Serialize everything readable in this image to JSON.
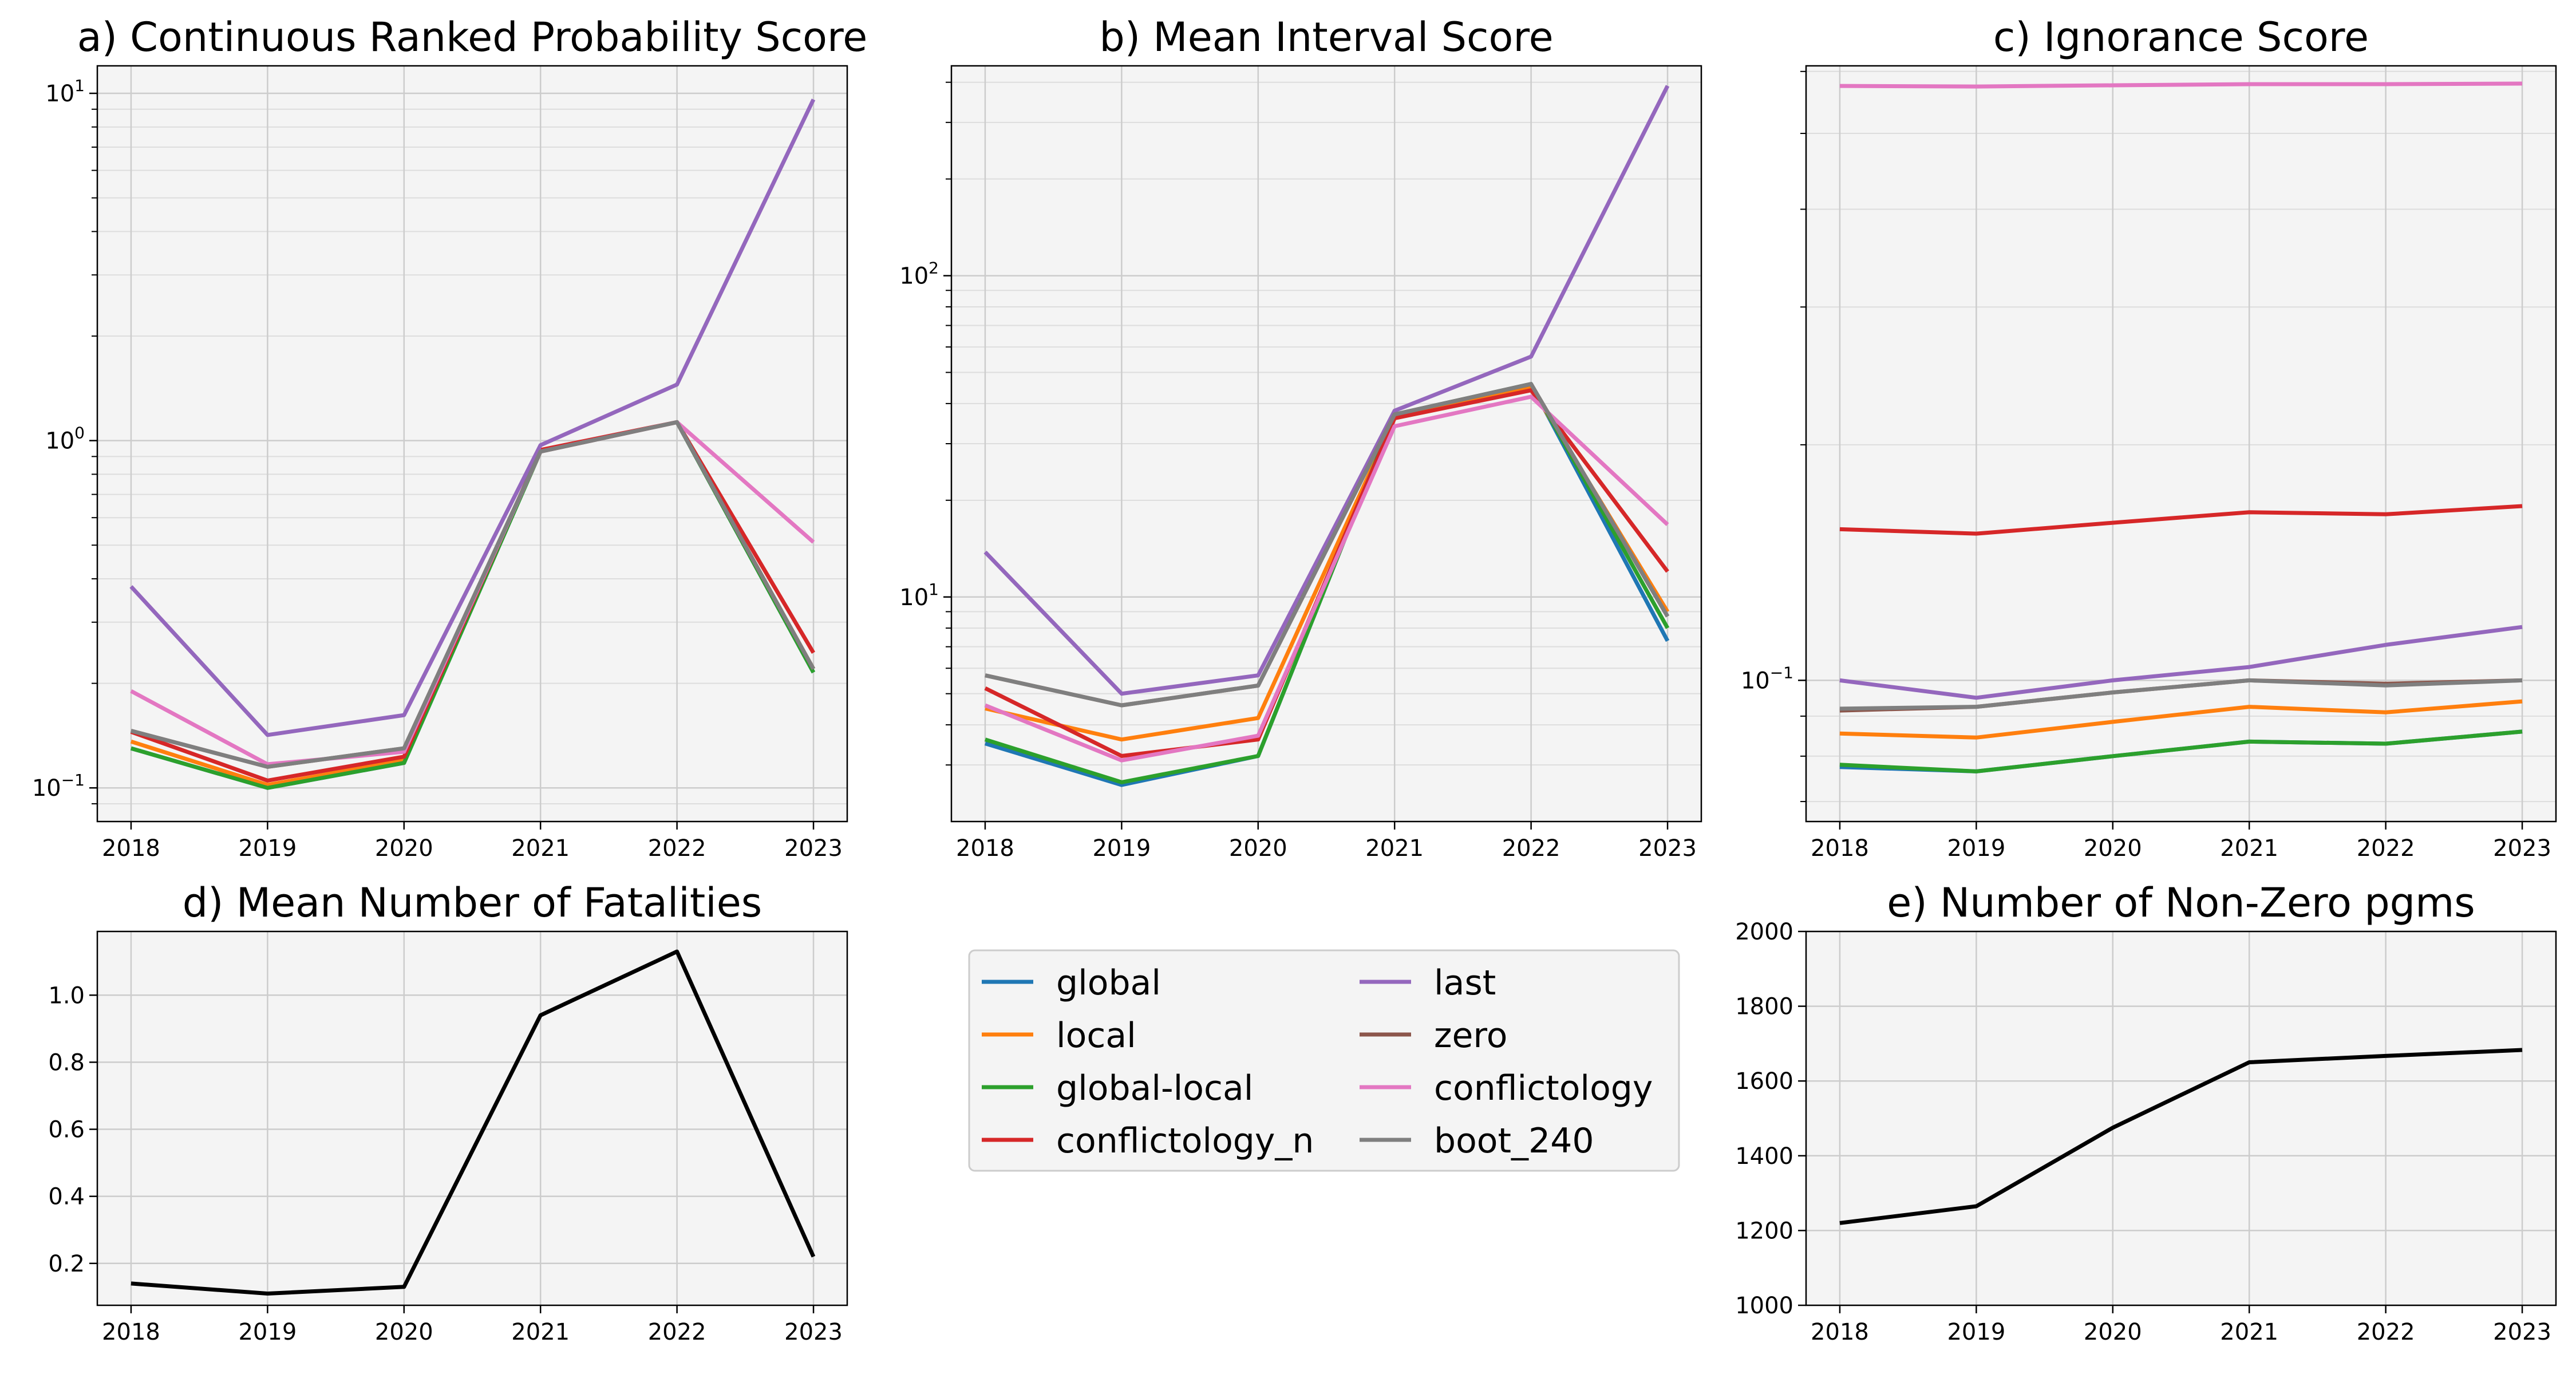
{
  "chart_data": [
    {
      "type": "line",
      "title": "a) Continuous Ranked Probability Score",
      "x": [
        "2018",
        "2019",
        "2020",
        "2021",
        "2022",
        "2023"
      ],
      "yscale": "log",
      "ylim": [
        0.08,
        12
      ],
      "yticks": [
        0.1,
        1,
        10
      ],
      "ytick_labels": [
        {
          "base": "10",
          "exp": "−1"
        },
        {
          "base": "10",
          "exp": "0"
        },
        {
          "base": "10",
          "exp": "1"
        }
      ],
      "grid": true,
      "series": [
        {
          "name": "global",
          "values": [
            0.13,
            0.1,
            0.118,
            0.93,
            1.13,
            0.215
          ]
        },
        {
          "name": "local",
          "values": [
            0.136,
            0.102,
            0.12,
            0.93,
            1.13,
            0.22
          ]
        },
        {
          "name": "global-local",
          "values": [
            0.13,
            0.1,
            0.118,
            0.93,
            1.13,
            0.215
          ]
        },
        {
          "name": "conflictology_n",
          "values": [
            0.145,
            0.105,
            0.123,
            0.94,
            1.13,
            0.245
          ]
        },
        {
          "name": "last",
          "values": [
            0.38,
            0.142,
            0.162,
            0.97,
            1.45,
            9.6
          ]
        },
        {
          "name": "zero",
          "values": [
            0.146,
            0.115,
            0.13,
            0.93,
            1.13,
            0.22
          ]
        },
        {
          "name": "conflictology",
          "values": [
            0.19,
            0.117,
            0.127,
            0.93,
            1.13,
            0.51
          ]
        },
        {
          "name": "boot_240",
          "values": [
            0.146,
            0.115,
            0.13,
            0.93,
            1.13,
            0.22
          ]
        }
      ]
    },
    {
      "type": "line",
      "title": "b) Mean Interval Score",
      "x": [
        "2018",
        "2019",
        "2020",
        "2021",
        "2022",
        "2023"
      ],
      "yscale": "log",
      "ylim": [
        2,
        450
      ],
      "yticks": [
        10,
        100
      ],
      "ytick_labels": [
        {
          "base": "10",
          "exp": "1"
        },
        {
          "base": "10",
          "exp": "2"
        }
      ],
      "grid": true,
      "series": [
        {
          "name": "global",
          "values": [
            3.5,
            2.6,
            3.2,
            37,
            46,
            7.3
          ]
        },
        {
          "name": "local",
          "values": [
            4.5,
            3.6,
            4.2,
            36,
            45,
            9
          ]
        },
        {
          "name": "global-local",
          "values": [
            3.6,
            2.65,
            3.2,
            37,
            46,
            8
          ]
        },
        {
          "name": "conflictology_n",
          "values": [
            5.2,
            3.2,
            3.6,
            36,
            44,
            12
          ]
        },
        {
          "name": "last",
          "values": [
            13.8,
            5,
            5.7,
            38,
            56,
            390
          ]
        },
        {
          "name": "zero",
          "values": [
            5.7,
            4.6,
            5.3,
            37,
            46,
            8.7
          ]
        },
        {
          "name": "conflictology",
          "values": [
            4.6,
            3.1,
            3.7,
            34,
            42,
            16.8
          ]
        },
        {
          "name": "boot_240",
          "values": [
            5.7,
            4.6,
            5.3,
            37,
            46,
            8.7
          ]
        }
      ]
    },
    {
      "type": "line",
      "title": "c) Ignorance Score",
      "x": [
        "2018",
        "2019",
        "2020",
        "2021",
        "2022",
        "2023"
      ],
      "yscale": "log",
      "ylim": [
        0.066,
        0.61
      ],
      "yticks": [
        0.1
      ],
      "ytick_labels": [
        {
          "base": "10",
          "exp": "−1"
        }
      ],
      "grid": true,
      "series": [
        {
          "name": "global",
          "values": [
            0.0775,
            0.0765,
            0.08,
            0.0835,
            0.083,
            0.086
          ]
        },
        {
          "name": "local",
          "values": [
            0.0855,
            0.0845,
            0.0885,
            0.0925,
            0.091,
            0.094
          ]
        },
        {
          "name": "global-local",
          "values": [
            0.078,
            0.0765,
            0.08,
            0.0835,
            0.083,
            0.086
          ]
        },
        {
          "name": "conflictology_n",
          "values": [
            0.156,
            0.154,
            0.159,
            0.164,
            0.163,
            0.167
          ]
        },
        {
          "name": "last",
          "values": [
            0.1,
            0.095,
            0.1,
            0.104,
            0.111,
            0.117
          ]
        },
        {
          "name": "zero",
          "values": [
            0.0915,
            0.0925,
            0.0965,
            0.1,
            0.099,
            0.1
          ]
        },
        {
          "name": "conflictology",
          "values": [
            0.575,
            0.574,
            0.576,
            0.578,
            0.578,
            0.579
          ]
        },
        {
          "name": "boot_240",
          "values": [
            0.092,
            0.0925,
            0.0965,
            0.1,
            0.0985,
            0.1
          ]
        }
      ]
    },
    {
      "type": "line",
      "title": "d) Mean Number of Fatalities",
      "x": [
        "2018",
        "2019",
        "2020",
        "2021",
        "2022",
        "2023"
      ],
      "ylim": [
        0.075,
        1.19
      ],
      "yticks": [
        0.2,
        0.4,
        0.6,
        0.8,
        1.0
      ],
      "ytick_labels": [
        "0.2",
        "0.4",
        "0.6",
        "0.8",
        "1.0"
      ],
      "grid": true,
      "series": [
        {
          "values": [
            0.14,
            0.11,
            0.13,
            0.94,
            1.13,
            0.22
          ]
        }
      ]
    },
    {
      "type": "line",
      "title": "e) Number of Non-Zero pgms",
      "x": [
        "2018",
        "2019",
        "2020",
        "2021",
        "2022",
        "2023"
      ],
      "ylim": [
        1000,
        2000
      ],
      "yticks": [
        1000,
        1200,
        1400,
        1600,
        1800,
        2000
      ],
      "ytick_labels": [
        "1000",
        "1200",
        "1400",
        "1600",
        "1800",
        "2000"
      ],
      "grid": true,
      "series": [
        {
          "values": [
            1220,
            1265,
            1475,
            1650,
            1667,
            1683
          ]
        }
      ]
    }
  ],
  "legend": {
    "placement": "bottom-center",
    "entries": [
      "global",
      "local",
      "global-local",
      "conflictology_n",
      "last",
      "zero",
      "conflictology",
      "boot_240"
    ]
  },
  "colors": {
    "global": "#1f77b4",
    "local": "#ff7f0e",
    "global-local": "#2ca02c",
    "conflictology_n": "#d62728",
    "last": "#9467bd",
    "zero": "#8c564b",
    "conflictology": "#e377c2",
    "boot_240": "#7f7f7f",
    "single": "#000000",
    "panel_bg": "#f4f4f4",
    "grid_major": "#cccccc",
    "grid_minor": "#dddddd"
  }
}
